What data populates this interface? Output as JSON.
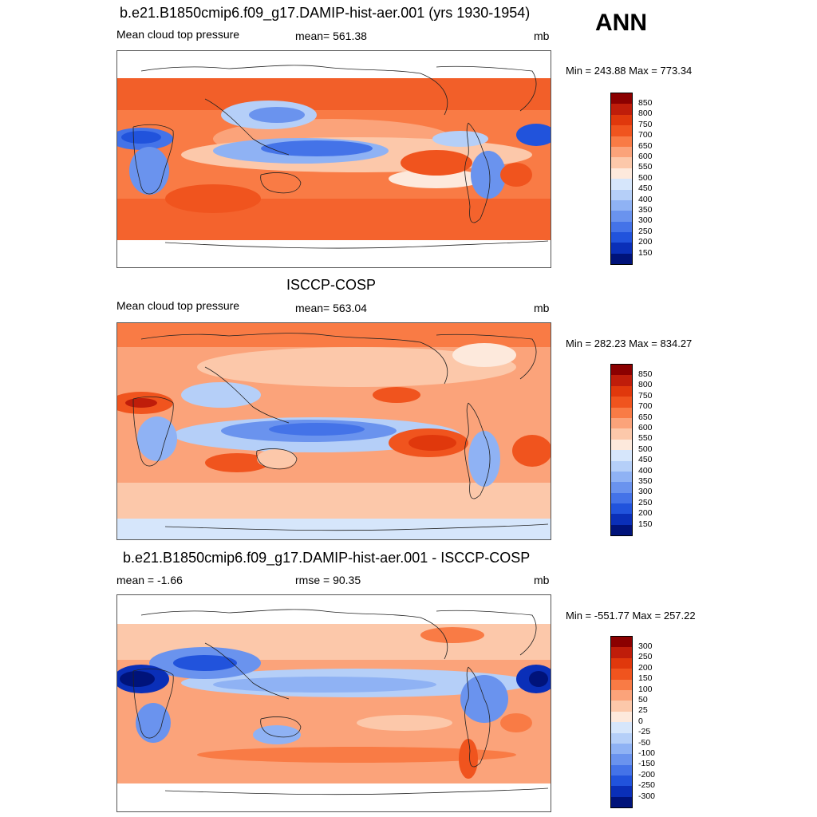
{
  "season": "ANN",
  "panels": [
    {
      "title": "b.e21.B1850cmip6.f09_g17.DAMIP-hist-aer.001 (yrs 1930-1954)",
      "left_label": "Mean cloud top pressure",
      "center_label": "mean= 561.38",
      "units": "mb",
      "minmax": "Min = 243.88 Max = 773.34",
      "colorbar": {
        "labels": [
          "850",
          "800",
          "750",
          "700",
          "650",
          "600",
          "550",
          "500",
          "450",
          "400",
          "350",
          "300",
          "250",
          "200",
          "150"
        ],
        "colors": [
          "#8b0000",
          "#bf1d0a",
          "#e0380c",
          "#f0541e",
          "#f97b45",
          "#fba37a",
          "#fcc8aa",
          "#fde9dc",
          "#d6e6fb",
          "#b5cff8",
          "#8fb2f4",
          "#6a93ee",
          "#4473e8",
          "#2153dc",
          "#0a2fb8",
          "#00137a"
        ]
      }
    },
    {
      "title": "ISCCP-COSP",
      "left_label": "Mean cloud top pressure",
      "center_label": "mean= 563.04",
      "units": "mb",
      "minmax": "Min = 282.23 Max = 834.27",
      "colorbar": {
        "labels": [
          "850",
          "800",
          "750",
          "700",
          "650",
          "600",
          "550",
          "500",
          "450",
          "400",
          "350",
          "300",
          "250",
          "200",
          "150"
        ],
        "colors": [
          "#8b0000",
          "#bf1d0a",
          "#e0380c",
          "#f0541e",
          "#f97b45",
          "#fba37a",
          "#fcc8aa",
          "#fde9dc",
          "#d6e6fb",
          "#b5cff8",
          "#8fb2f4",
          "#6a93ee",
          "#4473e8",
          "#2153dc",
          "#0a2fb8",
          "#00137a"
        ]
      }
    },
    {
      "title": "b.e21.B1850cmip6.f09_g17.DAMIP-hist-aer.001 - ISCCP-COSP",
      "left_label": "mean =  -1.66",
      "center_label": "rmse =  90.35",
      "units": "mb",
      "minmax": "Min = -551.77 Max = 257.22",
      "colorbar": {
        "labels": [
          "300",
          "250",
          "200",
          "150",
          "100",
          "50",
          "25",
          "0",
          "-25",
          "-50",
          "-100",
          "-150",
          "-200",
          "-250",
          "-300"
        ],
        "colors": [
          "#8b0000",
          "#bf1d0a",
          "#e0380c",
          "#f0541e",
          "#f97b45",
          "#fba37a",
          "#fcc8aa",
          "#fde9dc",
          "#d6e6fb",
          "#b5cff8",
          "#8fb2f4",
          "#6a93ee",
          "#4473e8",
          "#2153dc",
          "#0a2fb8",
          "#00137a"
        ]
      }
    }
  ]
}
